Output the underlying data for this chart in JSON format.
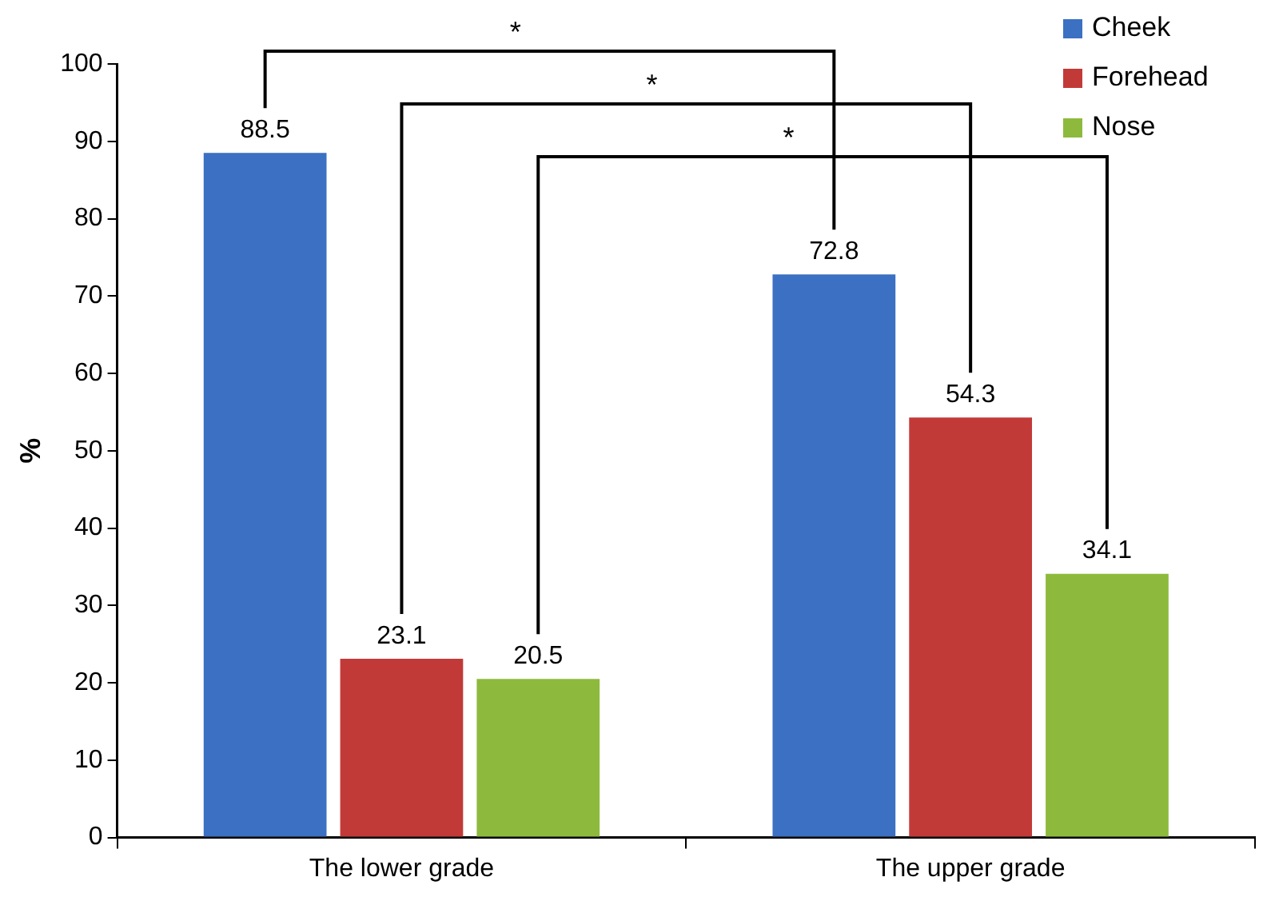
{
  "chart_data": {
    "type": "bar",
    "ylabel": "%",
    "categories": [
      "The lower grade",
      "The upper grade"
    ],
    "series": [
      {
        "name": "Cheek",
        "color": "#3b70c2",
        "values": [
          88.5,
          72.8
        ]
      },
      {
        "name": "Forehead",
        "color": "#c23a38",
        "values": [
          23.1,
          54.3
        ]
      },
      {
        "name": "Nose",
        "color": "#8dba3c",
        "values": [
          20.5,
          34.1
        ]
      }
    ],
    "ylim": [
      0,
      100
    ],
    "yticks": [
      0,
      10,
      20,
      30,
      40,
      50,
      60,
      70,
      80,
      90,
      100
    ],
    "grid": false,
    "legend": "top right",
    "data_labels": true,
    "annotations": [
      "*",
      "*",
      "*"
    ]
  }
}
